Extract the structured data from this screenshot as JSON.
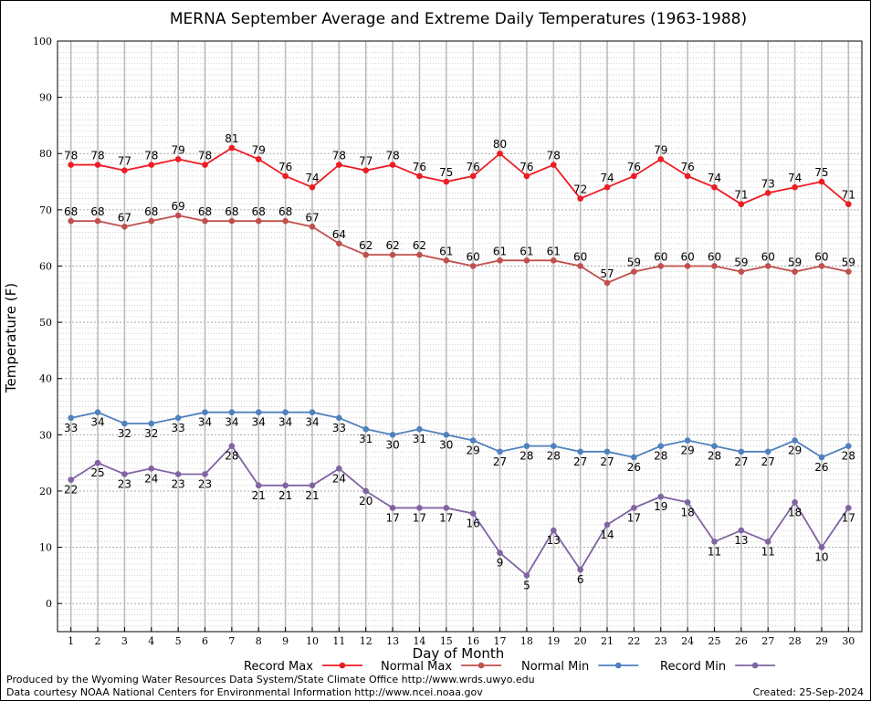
{
  "chart_data": {
    "type": "line",
    "title": "MERNA September Average and Extreme Daily Temperatures (1963-1988)",
    "xlabel": "Day of Month",
    "ylabel": "Temperature (F)",
    "xlim": [
      0.5,
      30.5
    ],
    "ylim": [
      -5,
      100
    ],
    "ytick_step": 10,
    "grid": true,
    "legend_position": "bottom",
    "x": [
      1,
      2,
      3,
      4,
      5,
      6,
      7,
      8,
      9,
      10,
      11,
      12,
      13,
      14,
      15,
      16,
      17,
      18,
      19,
      20,
      21,
      22,
      23,
      24,
      25,
      26,
      27,
      28,
      29,
      30
    ],
    "series": [
      {
        "name": "Record Max",
        "color": "#ee1c24",
        "label_position": "above",
        "values": [
          78,
          78,
          77,
          78,
          79,
          78,
          81,
          79,
          76,
          74,
          78,
          77,
          78,
          76,
          75,
          76,
          80,
          76,
          78,
          72,
          74,
          76,
          79,
          76,
          74,
          71,
          73,
          74,
          75,
          71
        ]
      },
      {
        "name": "Normal Max",
        "color": "#c0504d",
        "label_position": "above",
        "values": [
          68,
          68,
          67,
          68,
          69,
          68,
          68,
          68,
          68,
          67,
          64,
          62,
          62,
          62,
          61,
          60,
          61,
          61,
          61,
          60,
          57,
          59,
          60,
          60,
          60,
          59,
          60,
          59,
          60,
          59
        ]
      },
      {
        "name": "Normal Min",
        "color": "#4f81bd",
        "label_position": "below",
        "values": [
          33,
          34,
          32,
          32,
          33,
          34,
          34,
          34,
          34,
          34,
          33,
          31,
          30,
          31,
          30,
          29,
          27,
          28,
          28,
          27,
          27,
          26,
          28,
          29,
          28,
          27,
          27,
          29,
          26,
          28
        ]
      },
      {
        "name": "Record Min",
        "color": "#8064a2",
        "label_position": "below",
        "values": [
          22,
          25,
          23,
          24,
          23,
          23,
          28,
          21,
          21,
          21,
          24,
          20,
          17,
          17,
          17,
          16,
          9,
          5,
          13,
          6,
          14,
          17,
          19,
          18,
          11,
          13,
          11,
          18,
          10,
          17
        ]
      }
    ]
  },
  "footer": {
    "produced_by": "Produced by the Wyoming Water Resources Data System/State Climate Office http://www.wrds.uwyo.edu",
    "courtesy": "Data courtesy NOAA National Centers for Environmental Information http://www.ncei.noaa.gov",
    "created": "Created:  25-Sep-2024"
  }
}
